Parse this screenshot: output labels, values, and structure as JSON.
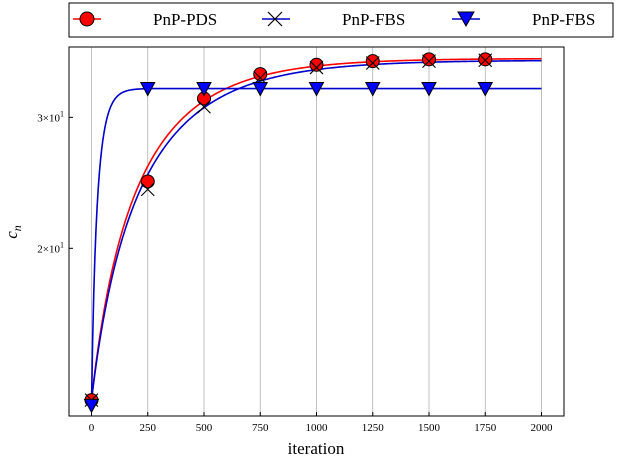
{
  "chart_data": {
    "type": "line",
    "xlabel": "iteration",
    "ylabel": "c",
    "ylabel_subscript": "n",
    "y_scale": "log",
    "xlim": [
      -100,
      2100
    ],
    "ylim": [
      11.9,
      37.3
    ],
    "grid": "vertical",
    "legend_placement": "top, above plot",
    "x_ticks": [
      0,
      250,
      500,
      750,
      1000,
      1250,
      1500,
      1750,
      2000
    ],
    "x_tick_labels": [
      "0",
      "250",
      "500",
      "750",
      "1000",
      "1250",
      "1500",
      "1750",
      "2000"
    ],
    "y_ticks": [
      {
        "value": 30,
        "mantissa": "3",
        "exponent": "1"
      },
      {
        "value": 20,
        "mantissa": "2",
        "exponent": "1"
      }
    ],
    "series": [
      {
        "name": "PnP-PDS",
        "color": "#ff0000",
        "marker": "circle",
        "marker_color": "#ff0000",
        "markers_x": [
          0,
          250,
          500,
          750,
          1000,
          1250,
          1500,
          1750
        ],
        "markers_y": [
          12.5,
          24.6,
          31.8,
          34.3,
          35.3,
          35.7,
          35.9,
          35.9
        ],
        "curve": {
          "start": 12.5,
          "end": 36.0,
          "tau": 300
        }
      },
      {
        "name": "PnP-FBS",
        "color": "#0000cc",
        "marker": "x",
        "marker_color": "#000000",
        "markers_x": [
          0,
          250,
          500,
          750,
          1000,
          1250,
          1500,
          1750
        ],
        "markers_y": [
          12.5,
          24.0,
          31.0,
          33.9,
          35.0,
          35.5,
          35.7,
          35.8
        ],
        "curve": {
          "start": 12.5,
          "end": 35.8,
          "tau": 320
        }
      },
      {
        "name": "PnP-FBS",
        "color": "#0000cc",
        "marker": "triangle-down",
        "marker_color": "#0000ff",
        "markers_x": [
          0,
          250,
          500,
          750,
          1000,
          1250,
          1500,
          1750
        ],
        "markers_y": [
          12.3,
          32.8,
          32.8,
          32.8,
          32.8,
          32.8,
          32.8,
          32.8
        ],
        "curve": {
          "start": 12.3,
          "end": 32.8,
          "tau": 35
        }
      }
    ]
  }
}
